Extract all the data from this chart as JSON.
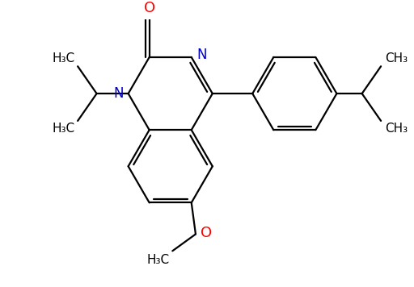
{
  "bg_color": "#ffffff",
  "bond_color": "#000000",
  "N_color": "#0000cc",
  "O_color": "#ff0000",
  "line_width": 1.6,
  "font_size": 11,
  "xlim": [
    0,
    5.12
  ],
  "ylim": [
    0,
    3.56
  ]
}
